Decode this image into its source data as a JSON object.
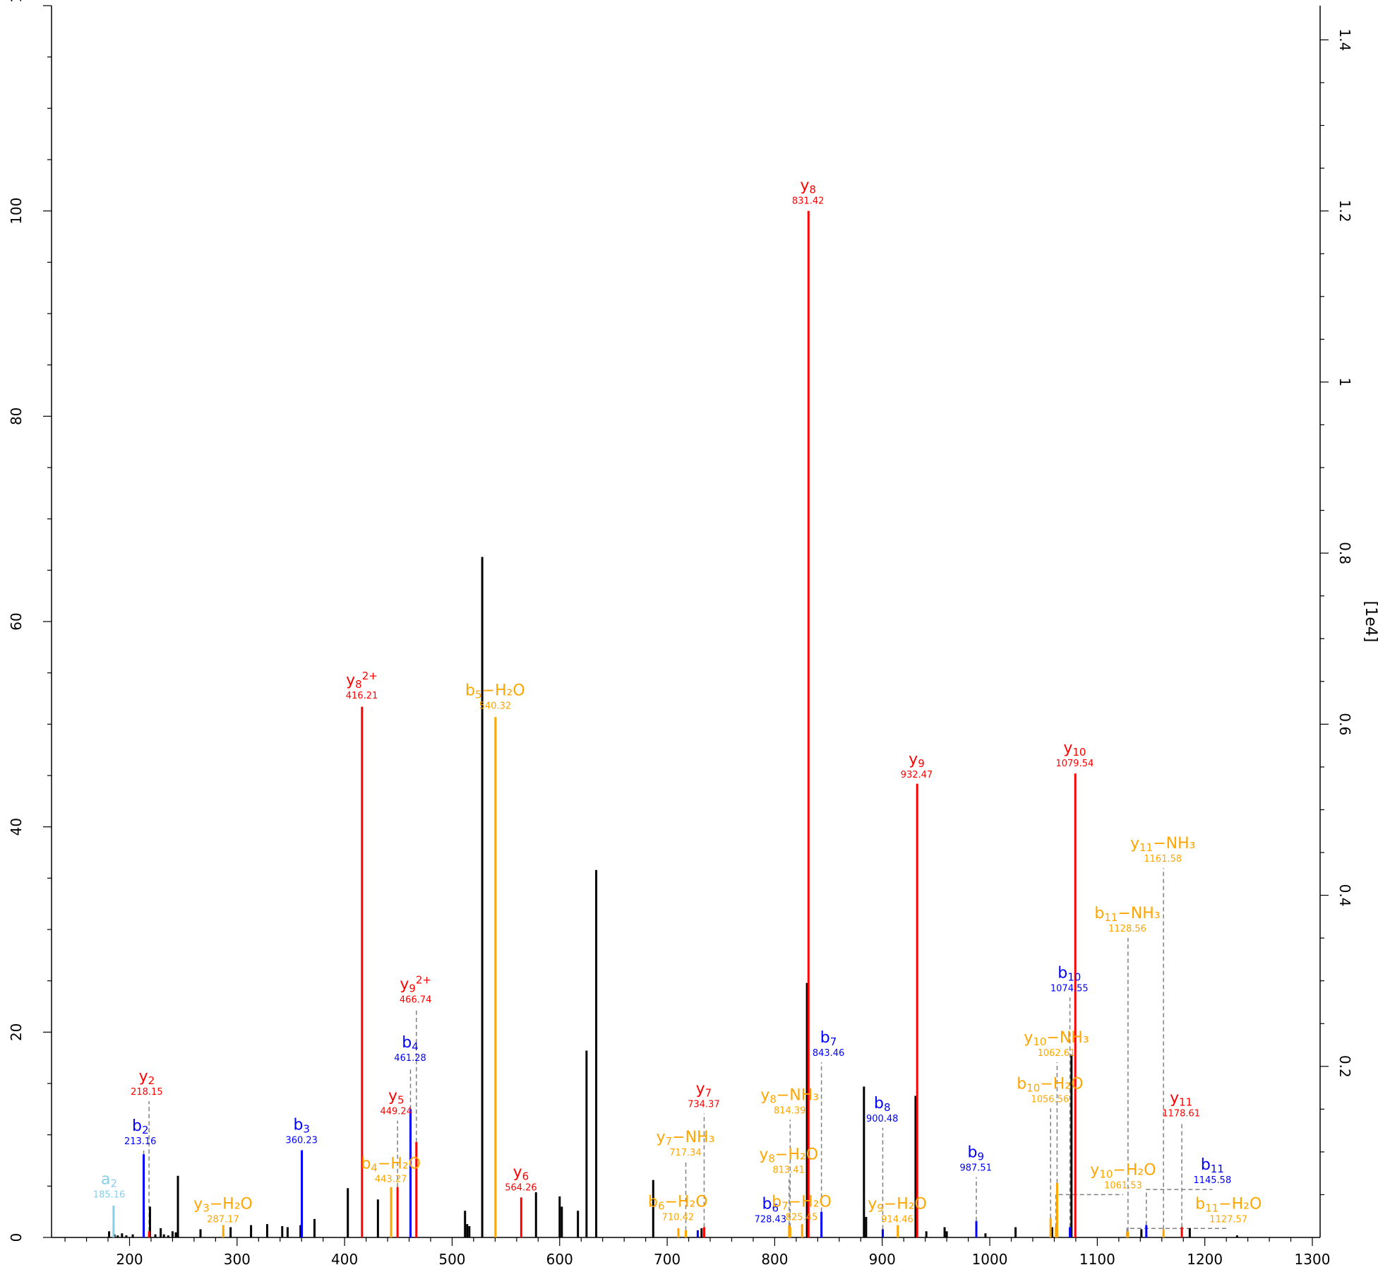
{
  "chart_data": {
    "type": "bar",
    "xlim": [
      135,
      1320
    ],
    "ylim_left": [
      0,
      120
    ],
    "ylim_right_label_scale": 1.2,
    "x_ticks": [
      200,
      300,
      400,
      500,
      600,
      700,
      800,
      900,
      1000,
      1100,
      1200,
      1300
    ],
    "y_ticks_left": [
      0,
      20,
      40,
      60,
      80,
      100
    ],
    "y_ticks_right": [
      "0.2",
      "0.4",
      "0.6",
      "0.8",
      "1",
      "1.2",
      "1.4"
    ],
    "y_top_left_partial": "12",
    "right_axis_label": "[1e4]",
    "colors": {
      "y_ion": "#ff0000",
      "b_ion": "#0000ff",
      "neutral_loss": "#ffa500",
      "a_ion": "#87ceeb",
      "unassigned": "#000000",
      "connector": "#808080"
    },
    "unassigned_peaks": [
      {
        "x": 181,
        "y": 0.6
      },
      {
        "x": 186,
        "y": 0.3
      },
      {
        "x": 189,
        "y": 0.2
      },
      {
        "x": 193,
        "y": 0.4
      },
      {
        "x": 197,
        "y": 0.2
      },
      {
        "x": 203,
        "y": 0.3
      },
      {
        "x": 219,
        "y": 3.0
      },
      {
        "x": 224,
        "y": 0.3
      },
      {
        "x": 229,
        "y": 0.9
      },
      {
        "x": 232,
        "y": 0.3
      },
      {
        "x": 236,
        "y": 0.2
      },
      {
        "x": 240,
        "y": 0.6
      },
      {
        "x": 243,
        "y": 0.5
      },
      {
        "x": 245,
        "y": 6.0
      },
      {
        "x": 266,
        "y": 0.8
      },
      {
        "x": 294,
        "y": 1.0
      },
      {
        "x": 313,
        "y": 1.2
      },
      {
        "x": 328,
        "y": 1.3
      },
      {
        "x": 342,
        "y": 1.1
      },
      {
        "x": 347,
        "y": 1.0
      },
      {
        "x": 359,
        "y": 1.2
      },
      {
        "x": 372,
        "y": 1.8
      },
      {
        "x": 403,
        "y": 4.8
      },
      {
        "x": 431,
        "y": 3.7
      },
      {
        "x": 512,
        "y": 2.6
      },
      {
        "x": 514,
        "y": 1.3
      },
      {
        "x": 516,
        "y": 1.1
      },
      {
        "x": 528,
        "y": 66.3
      },
      {
        "x": 578,
        "y": 4.4
      },
      {
        "x": 600,
        "y": 4.0
      },
      {
        "x": 602,
        "y": 3.0
      },
      {
        "x": 617,
        "y": 2.6
      },
      {
        "x": 625,
        "y": 18.2
      },
      {
        "x": 634,
        "y": 35.8
      },
      {
        "x": 687,
        "y": 5.6
      },
      {
        "x": 732,
        "y": 0.9
      },
      {
        "x": 830,
        "y": 24.8
      },
      {
        "x": 883,
        "y": 14.7
      },
      {
        "x": 885,
        "y": 2.0
      },
      {
        "x": 931,
        "y": 13.8
      },
      {
        "x": 941,
        "y": 0.6
      },
      {
        "x": 958,
        "y": 1.0
      },
      {
        "x": 960,
        "y": 0.6
      },
      {
        "x": 996,
        "y": 0.4
      },
      {
        "x": 1024,
        "y": 1.0
      },
      {
        "x": 1058,
        "y": 1.0
      },
      {
        "x": 1076,
        "y": 17.8
      },
      {
        "x": 1141,
        "y": 0.8
      },
      {
        "x": 1186,
        "y": 0.9
      },
      {
        "x": 1230,
        "y": 0.2
      }
    ],
    "annotated_peaks": [
      {
        "series": "a",
        "base": "a",
        "sub": "2",
        "suffix": "",
        "mz": "185.16",
        "x": 185.16,
        "y": 3.1,
        "label_y": 5.2,
        "label_x": 181,
        "label_size": 22,
        "value_size": 13
      },
      {
        "series": "b",
        "base": "b",
        "sub": "2",
        "suffix": "",
        "mz": "213.16",
        "x": 213.16,
        "y": 8.1,
        "label_y": 10.4,
        "label_x": 210,
        "label_size": 22,
        "value_size": 13
      },
      {
        "series": "y",
        "base": "y",
        "sub": "2",
        "suffix": "",
        "mz": "218.15",
        "x": 218.15,
        "y": 0.6,
        "label_y": 15.2,
        "label_x": 216,
        "label_size": 22,
        "value_size": 13
      },
      {
        "series": "loss",
        "base": "y",
        "sub": "3",
        "suffix": "−H₂O",
        "mz": "287.17",
        "x": 287.17,
        "y": 1.2,
        "label_y": 2.8,
        "label_x": 287,
        "label_size": 22,
        "value_size": 13
      },
      {
        "series": "b",
        "base": "b",
        "sub": "3",
        "suffix": "",
        "mz": "360.23",
        "x": 360.23,
        "y": 8.5,
        "label_y": 10.5,
        "label_x": 360,
        "label_size": 22,
        "value_size": 13
      },
      {
        "series": "y",
        "base": "y",
        "sub": "8",
        "suffix": "2+",
        "mz": "416.21",
        "x": 416.21,
        "y": 51.7,
        "label_y": 53.8,
        "label_x": 416,
        "label_size": 22,
        "value_size": 13
      },
      {
        "series": "loss",
        "base": "b",
        "sub": "4",
        "suffix": "−H₂O",
        "mz": "443.27",
        "x": 443.27,
        "y": 4.9,
        "label_y": 6.7,
        "label_x": 443,
        "label_size": 22,
        "value_size": 13
      },
      {
        "series": "y",
        "base": "y",
        "sub": "5",
        "suffix": "",
        "mz": "449.24",
        "x": 449.24,
        "y": 4.9,
        "label_y": 13.3,
        "label_x": 448,
        "label_size": 22,
        "value_size": 13
      },
      {
        "series": "b",
        "base": "b",
        "sub": "4",
        "suffix": "",
        "mz": "461.28",
        "x": 461.28,
        "y": 12.5,
        "label_y": 18.5,
        "label_x": 461,
        "label_size": 22,
        "value_size": 13
      },
      {
        "series": "y",
        "base": "y",
        "sub": "9",
        "suffix": "2+",
        "mz": "466.74",
        "x": 466.74,
        "y": 9.3,
        "label_y": 24.2,
        "label_x": 466,
        "label_size": 22,
        "value_size": 13
      },
      {
        "series": "loss",
        "base": "b",
        "sub": "5",
        "suffix": "−H₂O",
        "mz": "540.32",
        "x": 540.32,
        "y": 50.7,
        "label_y": 52.8,
        "label_x": 540,
        "label_size": 22,
        "value_size": 13
      },
      {
        "series": "y",
        "base": "y",
        "sub": "6",
        "suffix": "",
        "mz": "564.26",
        "x": 564.26,
        "y": 3.9,
        "label_y": 5.9,
        "label_x": 564,
        "label_size": 22,
        "value_size": 13
      },
      {
        "series": "loss",
        "base": "b",
        "sub": "6",
        "suffix": "−H₂O",
        "mz": "710.42",
        "x": 710.42,
        "y": 0.9,
        "label_y": 3.0,
        "label_x": 710,
        "label_size": 22,
        "value_size": 13
      },
      {
        "series": "loss",
        "base": "y",
        "sub": "7",
        "suffix": "−NH₃",
        "mz": "717.34",
        "x": 717.34,
        "y": 0.7,
        "label_y": 9.3,
        "label_x": 717,
        "label_size": 22,
        "value_size": 13
      },
      {
        "series": "b",
        "base": "b",
        "sub": "6",
        "suffix": "",
        "mz": "728.43",
        "x": 728.43,
        "y": 0.7,
        "label_y": 2.8,
        "label_x": 796,
        "label_size": 22,
        "value_size": 13
      },
      {
        "series": "y",
        "base": "y",
        "sub": "7",
        "suffix": "",
        "mz": "734.37",
        "x": 734.37,
        "y": 1.0,
        "label_y": 14.0,
        "label_x": 734,
        "label_size": 22,
        "value_size": 13
      },
      {
        "series": "loss",
        "base": "y",
        "sub": "8",
        "suffix": "−H₂O",
        "mz": "813.41",
        "x": 813.41,
        "y": 1.2,
        "label_y": 7.6,
        "label_x": 813,
        "label_size": 22,
        "value_size": 13
      },
      {
        "series": "loss",
        "base": "y",
        "sub": "8",
        "suffix": "−NH₃",
        "mz": "814.39",
        "x": 814.39,
        "y": 1.0,
        "label_y": 13.4,
        "label_x": 814,
        "label_size": 22,
        "value_size": 13
      },
      {
        "series": "loss",
        "base": "b",
        "sub": "7",
        "suffix": "−H₂O",
        "mz": "825.45",
        "x": 825.45,
        "y": 1.3,
        "label_y": 3.0,
        "label_x": 825,
        "label_size": 22,
        "value_size": 13
      },
      {
        "series": "y",
        "base": "y",
        "sub": "8",
        "suffix": "",
        "mz": "831.42",
        "x": 831.42,
        "y": 100.0,
        "label_y": 102.0,
        "label_x": 831,
        "label_size": 22,
        "value_size": 13
      },
      {
        "series": "b",
        "base": "b",
        "sub": "7",
        "suffix": "",
        "mz": "843.46",
        "x": 843.46,
        "y": 2.5,
        "label_y": 19.0,
        "label_x": 850,
        "label_size": 22,
        "value_size": 13
      },
      {
        "series": "b",
        "base": "b",
        "sub": "8",
        "suffix": "",
        "mz": "900.48",
        "x": 900.48,
        "y": 0.8,
        "label_y": 12.6,
        "label_x": 900,
        "label_size": 22,
        "value_size": 13
      },
      {
        "series": "loss",
        "base": "y",
        "sub": "9",
        "suffix": "−H₂O",
        "mz": "914.46",
        "x": 914.46,
        "y": 1.2,
        "label_y": 2.8,
        "label_x": 914,
        "label_size": 22,
        "value_size": 13
      },
      {
        "series": "y",
        "base": "y",
        "sub": "9",
        "suffix": "",
        "mz": "932.47",
        "x": 932.47,
        "y": 44.2,
        "label_y": 46.1,
        "label_x": 932,
        "label_size": 22,
        "value_size": 13
      },
      {
        "series": "b",
        "base": "b",
        "sub": "9",
        "suffix": "",
        "mz": "987.51",
        "x": 987.51,
        "y": 1.6,
        "label_y": 7.8,
        "label_x": 987,
        "label_size": 22,
        "value_size": 13
      },
      {
        "series": "loss",
        "base": "b",
        "sub": "10",
        "suffix": "−H₂O",
        "mz": "1056.56",
        "x": 1056.56,
        "y": 1.9,
        "label_y": 14.5,
        "label_x": 1056,
        "label_size": 22,
        "value_size": 13
      },
      {
        "series": "loss",
        "base": "y",
        "sub": "10",
        "suffix": "−H₂O",
        "mz": "1061.53",
        "x": 1061.53,
        "y": 1.0,
        "label_y": 6.1,
        "label_x": 1124,
        "label_size": 22,
        "value_size": 13
      },
      {
        "series": "loss",
        "base": "y",
        "sub": "10",
        "suffix": "−NH₃",
        "mz": "1062.61",
        "x": 1062.61,
        "y": 5.3,
        "label_y": 19.0,
        "label_x": 1062,
        "label_size": 22,
        "value_size": 13
      },
      {
        "series": "b",
        "base": "b",
        "sub": "10",
        "suffix": "",
        "mz": "1074.55",
        "x": 1074.55,
        "y": 1.0,
        "label_y": 25.3,
        "label_x": 1074,
        "label_size": 22,
        "value_size": 13
      },
      {
        "series": "y",
        "base": "y",
        "sub": "10",
        "suffix": "",
        "mz": "1079.54",
        "x": 1079.54,
        "y": 45.2,
        "label_y": 47.2,
        "label_x": 1079,
        "label_size": 22,
        "value_size": 13
      },
      {
        "series": "loss",
        "base": "b",
        "sub": "11",
        "suffix": "−H₂O",
        "mz": "1127.57",
        "x": 1127.57,
        "y": 0.5,
        "label_y": 2.8,
        "label_x": 1222,
        "label_size": 22,
        "value_size": 13
      },
      {
        "series": "loss",
        "base": "b",
        "sub": "11",
        "suffix": "−NH₃",
        "mz": "1128.56",
        "x": 1128.56,
        "y": 0.6,
        "label_y": 31.1,
        "label_x": 1128,
        "label_size": 22,
        "value_size": 13
      },
      {
        "series": "b",
        "base": "b",
        "sub": "11",
        "suffix": "",
        "mz": "1145.58",
        "x": 1145.58,
        "y": 1.2,
        "label_y": 6.6,
        "label_x": 1207,
        "label_size": 22,
        "value_size": 13
      },
      {
        "series": "loss",
        "base": "y",
        "sub": "11",
        "suffix": "−NH₃",
        "mz": "1161.58",
        "x": 1161.58,
        "y": 0.8,
        "label_y": 37.9,
        "label_x": 1161,
        "label_size": 22,
        "value_size": 13
      },
      {
        "series": "y",
        "base": "y",
        "sub": "11",
        "suffix": "",
        "mz": "1178.61",
        "x": 1178.61,
        "y": 1.0,
        "label_y": 13.1,
        "label_x": 1178,
        "label_size": 22,
        "value_size": 13
      }
    ]
  }
}
